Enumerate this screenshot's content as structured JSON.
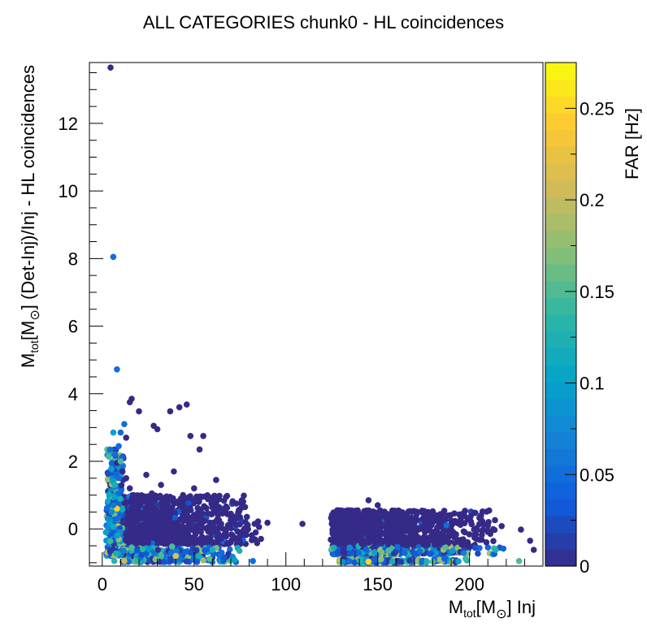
{
  "chart_data": {
    "type": "scatter",
    "title": "ALL CATEGORIES chunk0 - HL coincidences",
    "xlabel": {
      "base": "M",
      "sub": "tot",
      "bracket": "[M",
      "sun": "⊙",
      "close": "]",
      "rest": " Inj"
    },
    "ylabel": {
      "base": "M",
      "sub": "tot",
      "bracket": "[M",
      "sun": "⊙",
      "close": "]",
      "rest": " (Det-Inj)/Inj - HL coincidences"
    },
    "xlim": [
      -7,
      240
    ],
    "ylim": [
      -1.1,
      13.8
    ],
    "x_ticks": [
      0,
      50,
      100,
      150,
      200
    ],
    "x_tick_labels": [
      "0",
      "50",
      "100",
      "150",
      "200"
    ],
    "y_ticks": [
      0,
      2,
      4,
      6,
      8,
      10,
      12
    ],
    "y_tick_labels": [
      "0",
      "2",
      "4",
      "6",
      "8",
      "10",
      "12"
    ],
    "colorbar": {
      "label": "FAR [Hz]",
      "range": [
        0,
        0.275
      ],
      "ticks": [
        0,
        0.05,
        0.1,
        0.15,
        0.2,
        0.25
      ],
      "tick_labels": [
        "0",
        "0.05",
        "0.1",
        "0.15",
        "0.2",
        "0.25"
      ],
      "palette": [
        "#352a87",
        "#0f5cdd",
        "#1481d6",
        "#06a4ca",
        "#2eb7a4",
        "#87bf77",
        "#d1bb59",
        "#fec832",
        "#f9fb0e"
      ]
    },
    "points": [
      [
        4.5,
        13.65,
        0.0
      ],
      [
        6,
        8.05,
        0.05
      ],
      [
        8,
        4.72,
        0.05
      ],
      [
        15,
        3.75,
        0.0
      ],
      [
        16,
        3.85,
        0.0
      ],
      [
        20,
        3.48,
        0.0
      ],
      [
        28,
        3.05,
        0.0
      ],
      [
        30,
        2.95,
        0.0
      ],
      [
        37,
        3.48,
        0.0
      ],
      [
        42,
        3.6,
        0.0
      ],
      [
        46,
        3.68,
        0.0
      ],
      [
        48,
        2.75,
        0.0
      ],
      [
        55,
        2.75,
        0.0
      ],
      [
        53,
        2.35,
        0.0
      ],
      [
        12,
        3.1,
        0.05
      ],
      [
        10,
        2.85,
        0.05
      ],
      [
        13,
        2.7,
        0.0
      ],
      [
        9,
        2.45,
        0.05
      ],
      [
        6,
        2.85,
        0.1
      ],
      [
        7,
        2.2,
        0.05
      ],
      [
        8,
        1.95,
        0.0
      ],
      [
        10,
        2.0,
        0.15
      ],
      [
        11,
        1.7,
        0.0
      ],
      [
        13,
        1.5,
        0.0
      ],
      [
        15,
        1.2,
        0.0
      ],
      [
        17,
        1.0,
        0.0
      ],
      [
        20,
        0.9,
        0.0
      ],
      [
        24,
        1.6,
        0.0
      ],
      [
        27,
        1.05,
        0.0
      ],
      [
        32,
        1.3,
        0.0
      ],
      [
        36,
        0.85,
        0.0
      ],
      [
        39,
        1.7,
        0.0
      ],
      [
        44,
        1.0,
        0.0
      ],
      [
        50,
        1.2,
        0.0
      ],
      [
        54,
        0.95,
        0.0
      ],
      [
        60,
        0.85,
        0.0
      ],
      [
        62,
        1.45,
        0.0
      ],
      [
        66,
        0.55,
        0.0
      ],
      [
        70,
        0.45,
        0.0
      ],
      [
        73,
        0.75,
        0.0
      ],
      [
        75,
        0.35,
        0.0
      ],
      [
        78,
        0.2,
        0.0
      ],
      [
        83,
        0.15,
        0.0
      ],
      [
        90,
        0.18,
        0.0
      ],
      [
        109,
        0.15,
        0.0
      ],
      [
        5,
        1.78,
        0.1
      ],
      [
        6,
        1.4,
        0.1
      ],
      [
        7,
        0.95,
        0.1
      ],
      [
        8,
        0.6,
        0.25
      ],
      [
        9,
        1.05,
        0.05
      ],
      [
        5,
        0.5,
        0.08
      ],
      [
        4,
        0.2,
        0.1
      ],
      [
        3,
        0.05,
        0.08
      ],
      [
        7,
        1.3,
        0.12
      ],
      [
        9,
        1.5,
        0.05
      ],
      [
        6,
        0.7,
        0.06
      ],
      [
        145,
        0.85,
        0.0
      ],
      [
        150,
        0.7,
        0.0
      ],
      [
        125,
        0.15,
        0.0
      ],
      [
        128,
        0.55,
        0.0
      ],
      [
        206,
        0.3,
        0.0
      ],
      [
        210,
        0.1,
        0.0
      ],
      [
        228,
        -0.02,
        0.0
      ],
      [
        233,
        -0.35,
        0.0
      ],
      [
        235,
        -0.62,
        0.0
      ],
      [
        227,
        -0.95,
        0.15
      ],
      [
        131,
        -0.98,
        0.08
      ],
      [
        145,
        -0.97,
        0.25
      ],
      [
        158,
        -0.96,
        0.12
      ],
      [
        180,
        -0.97,
        0.15
      ],
      [
        194,
        -0.96,
        0.1
      ],
      [
        16,
        -0.55,
        0.15
      ],
      [
        22,
        -0.6,
        0.13
      ],
      [
        38,
        -0.52,
        0.15
      ],
      [
        60,
        -0.62,
        0.12
      ],
      [
        29,
        -0.9,
        0.17
      ],
      [
        55,
        -0.93,
        0.18
      ],
      [
        72,
        -0.92,
        0.1
      ],
      [
        12,
        -0.95,
        0.2
      ],
      [
        82,
        -0.95,
        0.05
      ],
      [
        65,
        -0.7,
        0.05
      ],
      [
        9,
        -0.3,
        0.18
      ],
      [
        8,
        -0.2,
        0.1
      ],
      [
        2,
        -0.1,
        0.1
      ],
      [
        3,
        0.3,
        0.08
      ],
      [
        40,
        -0.8,
        0.22
      ]
    ],
    "clusters": [
      {
        "x": [
          3,
          90
        ],
        "y": [
          -0.45,
          1.0
        ],
        "n": 1300,
        "peak": 25
      },
      {
        "x": [
          124,
          222
        ],
        "y": [
          -0.75,
          0.55
        ],
        "n": 1800,
        "peak": 135
      },
      {
        "x": [
          4,
          82
        ],
        "y": [
          -0.98,
          -0.55
        ],
        "n": 260,
        "peak": 30
      },
      {
        "x": [
          126,
          200
        ],
        "y": [
          -0.99,
          -0.88
        ],
        "n": 240,
        "peak": 150
      },
      {
        "x": [
          2,
          14
        ],
        "y": [
          -0.8,
          2.4
        ],
        "n": 220,
        "peak": 6
      }
    ]
  }
}
